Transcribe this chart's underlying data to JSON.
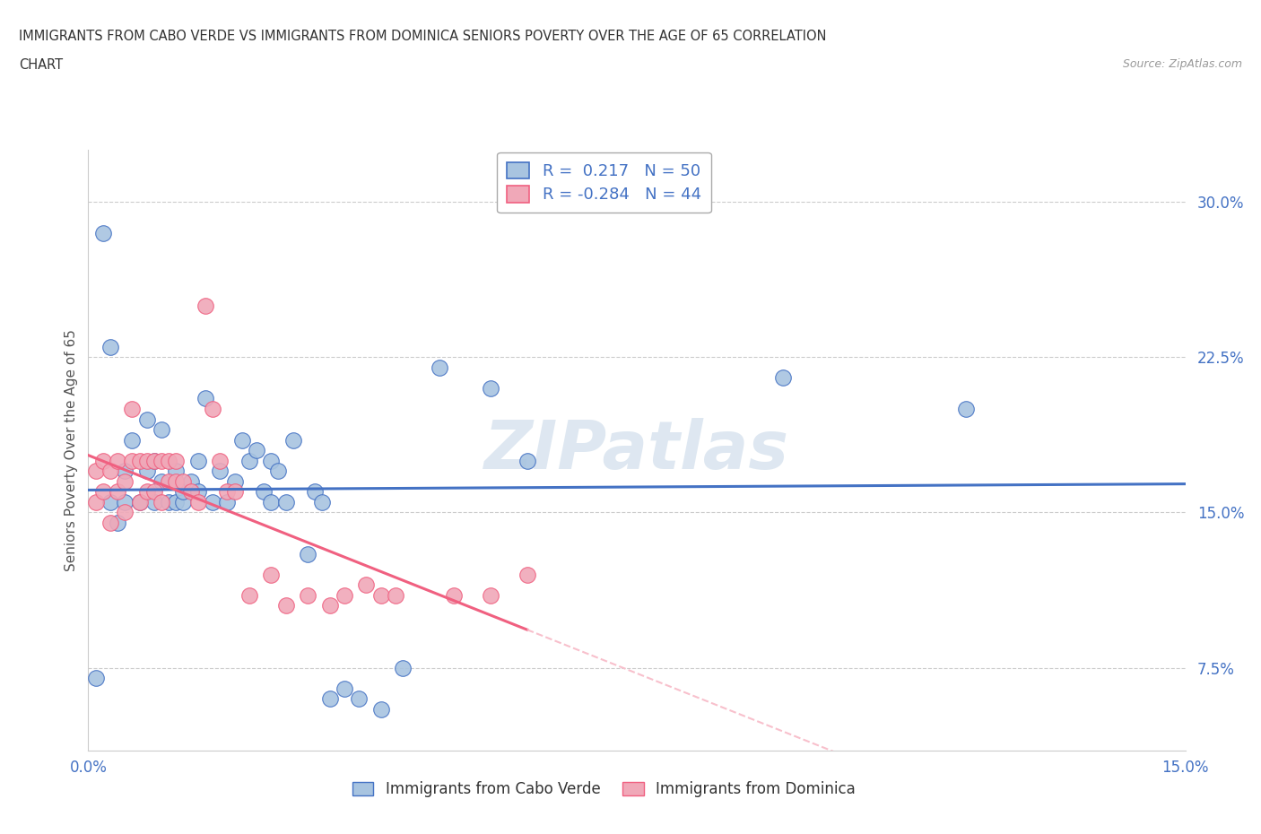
{
  "title_line1": "IMMIGRANTS FROM CABO VERDE VS IMMIGRANTS FROM DOMINICA SENIORS POVERTY OVER THE AGE OF 65 CORRELATION",
  "title_line2": "CHART",
  "source_text": "Source: ZipAtlas.com",
  "ylabel": "Seniors Poverty Over the Age of 65",
  "xlim": [
    0.0,
    0.15
  ],
  "ylim": [
    0.035,
    0.325
  ],
  "yticks": [
    0.075,
    0.15,
    0.225,
    0.3
  ],
  "ytick_labels": [
    "7.5%",
    "15.0%",
    "22.5%",
    "30.0%"
  ],
  "xticks": [
    0.0,
    0.025,
    0.05,
    0.075,
    0.1,
    0.125,
    0.15
  ],
  "xtick_labels": [
    "0.0%",
    "",
    "",
    "",
    "",
    "",
    "15.0%"
  ],
  "cabo_verde_R": 0.217,
  "cabo_verde_N": 50,
  "dominica_R": -0.284,
  "dominica_N": 44,
  "cabo_verde_color": "#a8c4e0",
  "dominica_color": "#f0a8b8",
  "cabo_verde_line_color": "#4472c4",
  "dominica_line_color": "#f06080",
  "dominica_dash_color": "#f8c0cc",
  "watermark": "ZIPatlas",
  "legend_label_cabo": "Immigrants from Cabo Verde",
  "legend_label_dominica": "Immigrants from Dominica",
  "cabo_verde_x": [
    0.001,
    0.002,
    0.003,
    0.003,
    0.004,
    0.005,
    0.005,
    0.006,
    0.007,
    0.008,
    0.008,
    0.009,
    0.009,
    0.01,
    0.01,
    0.011,
    0.012,
    0.012,
    0.013,
    0.013,
    0.014,
    0.015,
    0.015,
    0.016,
    0.017,
    0.018,
    0.019,
    0.02,
    0.021,
    0.022,
    0.023,
    0.024,
    0.025,
    0.025,
    0.026,
    0.027,
    0.028,
    0.03,
    0.031,
    0.032,
    0.033,
    0.035,
    0.037,
    0.04,
    0.043,
    0.048,
    0.055,
    0.06,
    0.095,
    0.12
  ],
  "cabo_verde_y": [
    0.07,
    0.285,
    0.155,
    0.23,
    0.145,
    0.17,
    0.155,
    0.185,
    0.155,
    0.17,
    0.195,
    0.155,
    0.175,
    0.19,
    0.165,
    0.155,
    0.17,
    0.155,
    0.155,
    0.16,
    0.165,
    0.175,
    0.16,
    0.205,
    0.155,
    0.17,
    0.155,
    0.165,
    0.185,
    0.175,
    0.18,
    0.16,
    0.175,
    0.155,
    0.17,
    0.155,
    0.185,
    0.13,
    0.16,
    0.155,
    0.06,
    0.065,
    0.06,
    0.055,
    0.075,
    0.22,
    0.21,
    0.175,
    0.215,
    0.2
  ],
  "dominica_x": [
    0.001,
    0.001,
    0.002,
    0.002,
    0.003,
    0.003,
    0.004,
    0.004,
    0.005,
    0.005,
    0.006,
    0.006,
    0.007,
    0.007,
    0.008,
    0.008,
    0.009,
    0.009,
    0.01,
    0.01,
    0.011,
    0.011,
    0.012,
    0.012,
    0.013,
    0.014,
    0.015,
    0.016,
    0.017,
    0.018,
    0.019,
    0.02,
    0.022,
    0.025,
    0.027,
    0.03,
    0.033,
    0.035,
    0.038,
    0.04,
    0.042,
    0.05,
    0.055,
    0.06
  ],
  "dominica_y": [
    0.155,
    0.17,
    0.16,
    0.175,
    0.145,
    0.17,
    0.16,
    0.175,
    0.15,
    0.165,
    0.175,
    0.2,
    0.155,
    0.175,
    0.16,
    0.175,
    0.16,
    0.175,
    0.155,
    0.175,
    0.165,
    0.175,
    0.165,
    0.175,
    0.165,
    0.16,
    0.155,
    0.25,
    0.2,
    0.175,
    0.16,
    0.16,
    0.11,
    0.12,
    0.105,
    0.11,
    0.105,
    0.11,
    0.115,
    0.11,
    0.11,
    0.11,
    0.11,
    0.12
  ]
}
